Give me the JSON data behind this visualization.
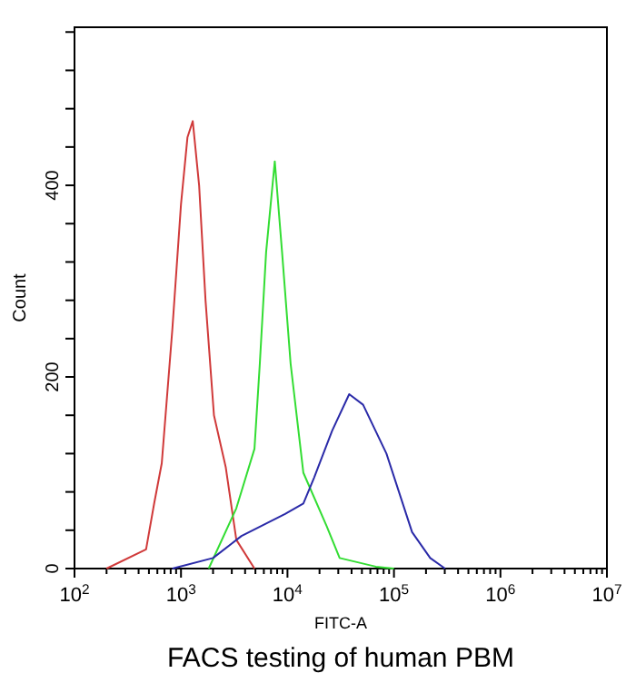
{
  "chart_data": {
    "type": "line",
    "title": "FACS testing of human PBM",
    "xlabel": "FITC-A",
    "ylabel": "Count",
    "log": "x",
    "xlim": [
      100,
      10000000
    ],
    "ylim": [
      0,
      565
    ],
    "xticks": [
      {
        "value": 100,
        "label": "10$^{2}$"
      },
      {
        "value": 200,
        "label": null
      },
      {
        "value": 300,
        "label": null
      },
      {
        "value": 400,
        "label": null
      },
      {
        "value": 500,
        "label": null
      },
      {
        "value": 600,
        "label": null
      },
      {
        "value": 700,
        "label": null
      },
      {
        "value": 800,
        "label": null
      },
      {
        "value": 900,
        "label": null
      },
      {
        "value": 1000,
        "label": "10$^{3}$"
      },
      {
        "value": 2000,
        "label": null
      },
      {
        "value": 3000,
        "label": null
      },
      {
        "value": 4000,
        "label": null
      },
      {
        "value": 5000,
        "label": null
      },
      {
        "value": 6000,
        "label": null
      },
      {
        "value": 7000,
        "label": null
      },
      {
        "value": 8000,
        "label": null
      },
      {
        "value": 9000,
        "label": null
      },
      {
        "value": 10000,
        "label": "10$^{4}$"
      },
      {
        "value": 20000,
        "label": null
      },
      {
        "value": 30000,
        "label": null
      },
      {
        "value": 40000,
        "label": null
      },
      {
        "value": 50000,
        "label": null
      },
      {
        "value": 60000,
        "label": null
      },
      {
        "value": 70000,
        "label": null
      },
      {
        "value": 80000,
        "label": null
      },
      {
        "value": 90000,
        "label": null
      },
      {
        "value": 100000,
        "label": "10$^{5}$"
      },
      {
        "value": 200000,
        "label": null
      },
      {
        "value": 300000,
        "label": null
      },
      {
        "value": 400000,
        "label": null
      },
      {
        "value": 500000,
        "label": null
      },
      {
        "value": 600000,
        "label": null
      },
      {
        "value": 700000,
        "label": null
      },
      {
        "value": 800000,
        "label": null
      },
      {
        "value": 900000,
        "label": null
      },
      {
        "value": 1000000,
        "label": "10$^{6}$"
      },
      {
        "value": 2000000,
        "label": null
      },
      {
        "value": 3000000,
        "label": null
      },
      {
        "value": 4000000,
        "label": null
      },
      {
        "value": 5000000,
        "label": null
      },
      {
        "value": 6000000,
        "label": null
      },
      {
        "value": 7000000,
        "label": null
      },
      {
        "value": 8000000,
        "label": null
      },
      {
        "value": 9000000,
        "label": null
      },
      {
        "value": 10000000,
        "label": "10$^{7}$"
      }
    ],
    "yticks": [
      0,
      {
        "value": 40,
        "label": null
      },
      {
        "value": 80,
        "label": null
      },
      {
        "value": 120,
        "label": null
      },
      {
        "value": 160,
        "label": null
      },
      200,
      {
        "value": 240,
        "label": null
      },
      {
        "value": 280,
        "label": null
      },
      {
        "value": 320,
        "label": null
      },
      {
        "value": 360,
        "label": null
      },
      400,
      {
        "value": 440,
        "label": null
      },
      {
        "value": 480,
        "label": null
      },
      {
        "value": 520,
        "label": null
      },
      {
        "value": 560,
        "label": null
      }
    ],
    "series": [
      {
        "color": "#d03a3a",
        "x": [
          200,
          470,
          560,
          660,
          830,
          1000,
          1150,
          1290,
          1480,
          1700,
          2040,
          2630,
          3310,
          4900
        ],
        "values": [
          0,
          20,
          68,
          110,
          250,
          380,
          450,
          467,
          400,
          280,
          160,
          106,
          30,
          0
        ]
      },
      {
        "color": "#33dd33",
        "x": [
          1820,
          3310,
          4900,
          5500,
          6300,
          7600,
          8900,
          10700,
          14100,
          23400,
          30900,
          67600,
          100000
        ],
        "values": [
          0,
          63,
          125,
          214,
          330,
          425,
          330,
          214,
          100,
          44,
          11,
          2,
          0
        ]
      },
      {
        "color": "#2a2aa8",
        "x": [
          830,
          2000,
          3700,
          9500,
          14100,
          17800,
          26300,
          38000,
          51300,
          85000,
          148000,
          219000,
          302000
        ],
        "values": [
          0,
          11,
          34,
          57,
          68,
          95,
          144,
          182,
          171,
          120,
          38,
          11,
          0
        ]
      }
    ]
  }
}
